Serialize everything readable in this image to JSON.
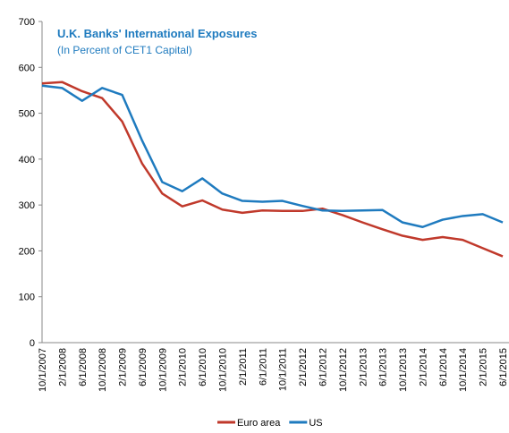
{
  "chart_data": {
    "type": "line",
    "title": "U.K. Banks' International Exposures",
    "subtitle": "(In Percent of CET1 Capital)",
    "categories": [
      "10/1/2007",
      "2/1/2008",
      "6/1/2008",
      "10/1/2008",
      "2/1/2009",
      "6/1/2009",
      "10/1/2009",
      "2/1/2010",
      "6/1/2010",
      "10/1/2010",
      "2/1/2011",
      "6/1/2011",
      "10/1/2011",
      "2/1/2012",
      "6/1/2012",
      "10/1/2012",
      "2/1/2013",
      "6/1/2013",
      "10/1/2013",
      "2/1/2014",
      "6/1/2014",
      "10/1/2014",
      "2/1/2015",
      "6/1/2015"
    ],
    "series": [
      {
        "name": "Euro area",
        "color": "#c0392b",
        "values": [
          565,
          568,
          548,
          533,
          482,
          390,
          325,
          297,
          310,
          290,
          283,
          288,
          287,
          287,
          292,
          278,
          262,
          247,
          233,
          224,
          230,
          224,
          206,
          188
        ]
      },
      {
        "name": "US",
        "color": "#1f7bbf",
        "values": [
          560,
          555,
          527,
          555,
          540,
          440,
          350,
          330,
          358,
          325,
          309,
          307,
          309,
          298,
          288,
          287,
          288,
          289,
          262,
          252,
          268,
          276,
          280,
          262
        ]
      }
    ],
    "ylim": [
      0,
      700
    ],
    "yticks": [
      0,
      100,
      200,
      300,
      400,
      500,
      600,
      700
    ],
    "legend": "bottom"
  }
}
